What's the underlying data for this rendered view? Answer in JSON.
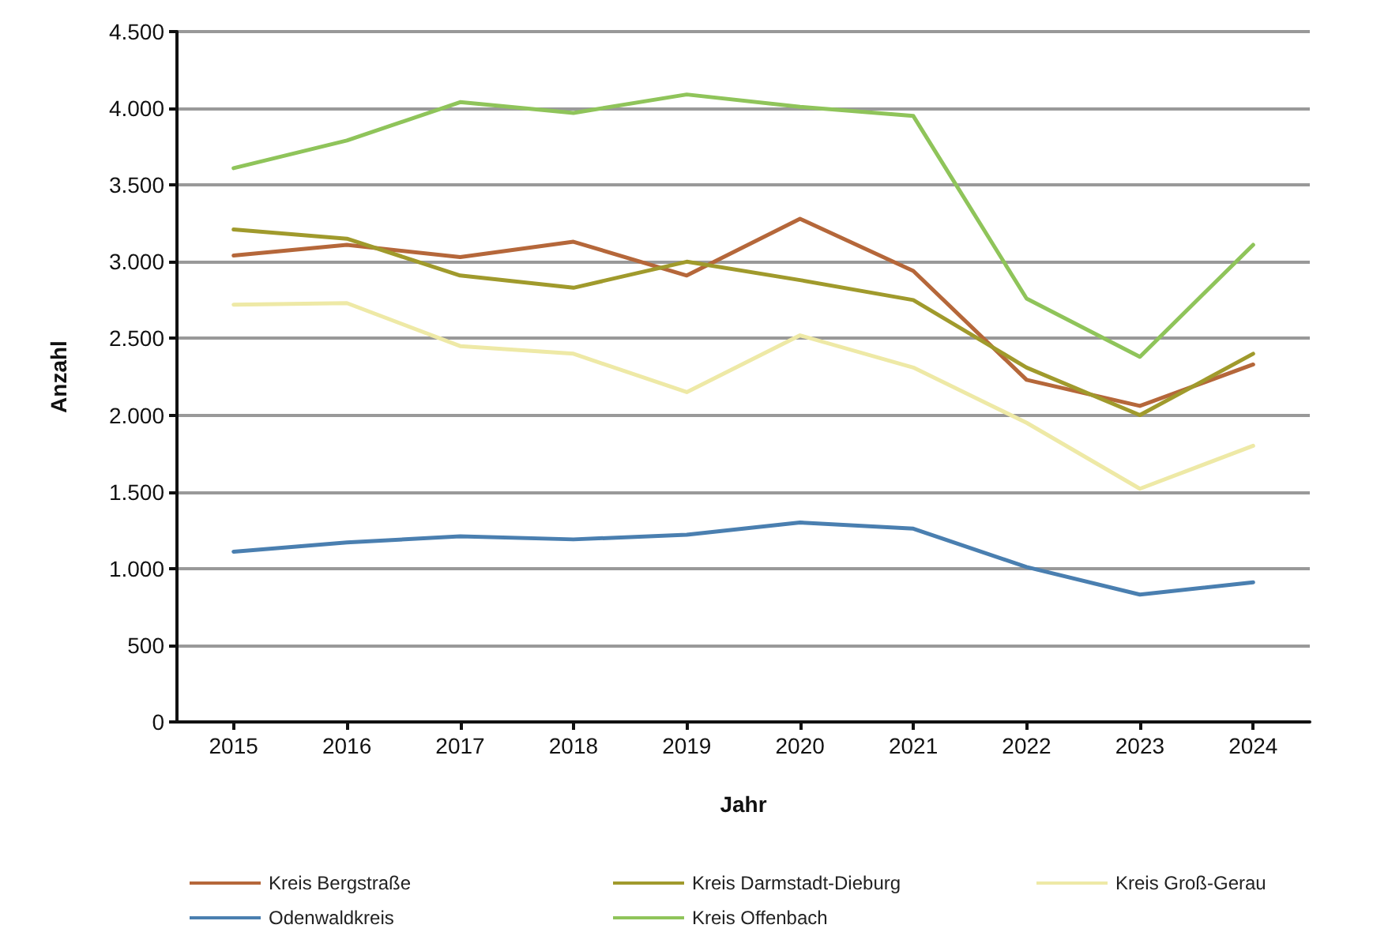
{
  "chart_data": {
    "type": "line",
    "xlabel": "Jahr",
    "ylabel": "Anzahl",
    "categories": [
      "2015",
      "2016",
      "2017",
      "2018",
      "2019",
      "2020",
      "2021",
      "2022",
      "2023",
      "2024"
    ],
    "series": [
      {
        "name": "Kreis Bergstraße",
        "color": "#b5673a",
        "values": [
          3040,
          3110,
          3030,
          3130,
          2910,
          3280,
          2940,
          2230,
          2060,
          2330
        ]
      },
      {
        "name": "Kreis Darmstadt-Dieburg",
        "color": "#a09a2c",
        "values": [
          3210,
          3150,
          2910,
          2830,
          3000,
          2880,
          2750,
          2310,
          2000,
          2400
        ]
      },
      {
        "name": "Kreis Groß-Gerau",
        "color": "#eee9a6",
        "values": [
          2720,
          2730,
          2450,
          2400,
          2150,
          2520,
          2310,
          1950,
          1520,
          1800
        ]
      },
      {
        "name": "Odenwaldkreis",
        "color": "#4a7fb0",
        "values": [
          1110,
          1170,
          1210,
          1190,
          1220,
          1300,
          1260,
          1010,
          830,
          910
        ]
      },
      {
        "name": "Kreis Offenbach",
        "color": "#8fc45a",
        "values": [
          3610,
          3790,
          4040,
          3970,
          4090,
          4010,
          3950,
          2760,
          2380,
          3110
        ]
      }
    ],
    "ylim": [
      0,
      4500
    ],
    "yticks": [
      0,
      500,
      {
        "value": 1000,
        "label": "1.000"
      },
      {
        "value": 1500,
        "label": "1.500"
      },
      {
        "value": 2000,
        "label": "2.000"
      },
      {
        "value": 2500,
        "label": "2.500"
      },
      {
        "value": 3000,
        "label": "3.000"
      },
      {
        "value": 3500,
        "label": "3.500"
      },
      {
        "value": 4000,
        "label": "4.000"
      },
      {
        "value": 4500,
        "label": "4.500"
      }
    ],
    "grid": "y",
    "legend": "bottom",
    "marker": "none",
    "line_style": "solid"
  }
}
